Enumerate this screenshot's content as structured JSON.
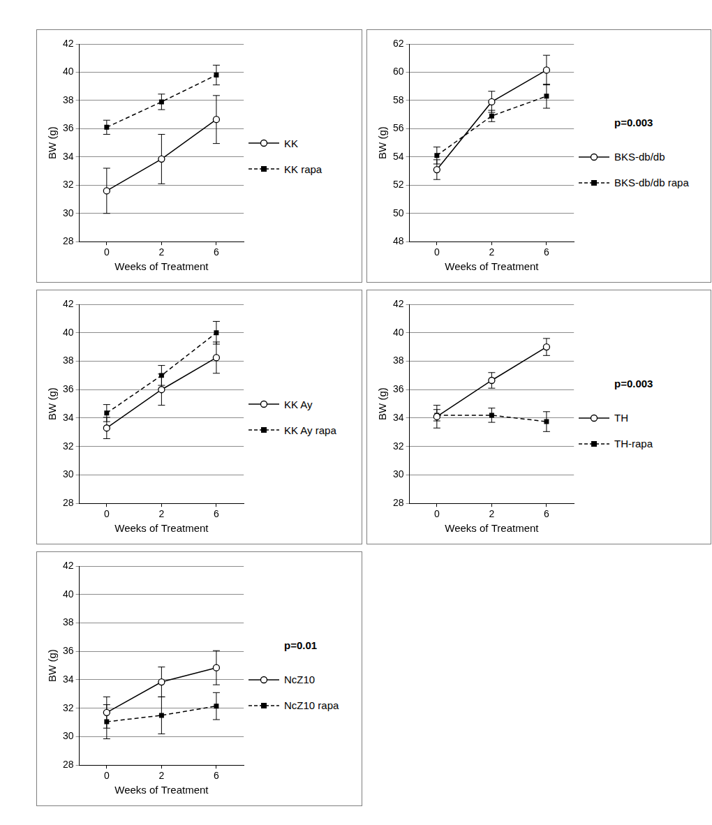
{
  "chart_data": [
    {
      "type": "line",
      "x_label": "Weeks of Treatment",
      "y_label": "BW (g)",
      "categories": [
        "0",
        "2",
        "6"
      ],
      "ylim": [
        28,
        42
      ],
      "yticks": [
        28,
        30,
        32,
        34,
        36,
        38,
        40,
        42
      ],
      "grid": true,
      "legend": "right",
      "series": [
        {
          "name": "KK",
          "color": "#000000",
          "marker": "circle",
          "line_style": "solid",
          "values": [
            31.6,
            33.85,
            36.65
          ],
          "errors": [
            1.6,
            1.75,
            1.7
          ]
        },
        {
          "name": "KK rapa",
          "color": "#000000",
          "marker": "square",
          "line_style": "dashed",
          "values": [
            36.1,
            37.9,
            39.8
          ],
          "errors": [
            0.5,
            0.55,
            0.7
          ]
        }
      ]
    },
    {
      "type": "line",
      "x_label": "Weeks of Treatment",
      "y_label": "BW (g)",
      "categories": [
        "0",
        "2",
        "6"
      ],
      "ylim": [
        48,
        62
      ],
      "yticks": [
        48,
        50,
        52,
        54,
        56,
        58,
        60,
        62
      ],
      "grid": true,
      "legend": "right",
      "annotation": "p=0.003",
      "series": [
        {
          "name": "BKS-db/db",
          "color": "#000000",
          "marker": "circle",
          "line_style": "solid",
          "values": [
            53.1,
            57.9,
            60.15
          ],
          "errors": [
            0.7,
            0.75,
            1.05
          ]
        },
        {
          "name": "BKS-db/db rapa",
          "color": "#000000",
          "marker": "square",
          "line_style": "dashed",
          "values": [
            54.1,
            56.9,
            58.3
          ],
          "errors": [
            0.6,
            0.4,
            0.85
          ]
        }
      ]
    },
    {
      "type": "line",
      "x_label": "Weeks of Treatment",
      "y_label": "BW (g)",
      "categories": [
        "0",
        "2",
        "6"
      ],
      "ylim": [
        28,
        42
      ],
      "yticks": [
        28,
        30,
        32,
        34,
        36,
        38,
        40,
        42
      ],
      "grid": true,
      "legend": "right",
      "series": [
        {
          "name": "KK Ay",
          "color": "#000000",
          "marker": "circle",
          "line_style": "solid",
          "values": [
            33.3,
            36.0,
            38.25
          ],
          "errors": [
            0.75,
            1.1,
            1.1
          ]
        },
        {
          "name": "KK Ay rapa",
          "color": "#000000",
          "marker": "square",
          "line_style": "dashed",
          "values": [
            34.35,
            37.0,
            40.0
          ],
          "errors": [
            0.6,
            0.7,
            0.8
          ]
        }
      ]
    },
    {
      "type": "line",
      "x_label": "Weeks of Treatment",
      "y_label": "BW (g)",
      "categories": [
        "0",
        "2",
        "6"
      ],
      "ylim": [
        28,
        42
      ],
      "yticks": [
        28,
        30,
        32,
        34,
        36,
        38,
        40,
        42
      ],
      "grid": true,
      "legend": "right",
      "annotation": "p=0.003",
      "series": [
        {
          "name": "TH",
          "color": "#000000",
          "marker": "circle",
          "line_style": "solid",
          "values": [
            34.1,
            36.65,
            39.0
          ],
          "errors": [
            0.8,
            0.55,
            0.6
          ]
        },
        {
          "name": "TH-rapa",
          "color": "#000000",
          "marker": "square",
          "line_style": "dashed",
          "values": [
            34.2,
            34.2,
            33.75
          ],
          "errors": [
            0.4,
            0.5,
            0.7
          ]
        }
      ]
    },
    {
      "type": "line",
      "x_label": "Weeks of Treatment",
      "y_label": "BW (g)",
      "categories": [
        "0",
        "2",
        "6"
      ],
      "ylim": [
        28,
        42
      ],
      "yticks": [
        28,
        30,
        32,
        34,
        36,
        38,
        40,
        42
      ],
      "grid": true,
      "legend": "right",
      "annotation": "p=0.01",
      "series": [
        {
          "name": "NcZ10",
          "color": "#000000",
          "marker": "circle",
          "line_style": "solid",
          "values": [
            31.7,
            33.85,
            34.85
          ],
          "errors": [
            1.1,
            1.05,
            1.2
          ]
        },
        {
          "name": "NcZ10 rapa",
          "color": "#000000",
          "marker": "square",
          "line_style": "dashed",
          "values": [
            31.05,
            31.5,
            32.15
          ],
          "errors": [
            1.2,
            1.3,
            0.95
          ]
        }
      ]
    }
  ]
}
